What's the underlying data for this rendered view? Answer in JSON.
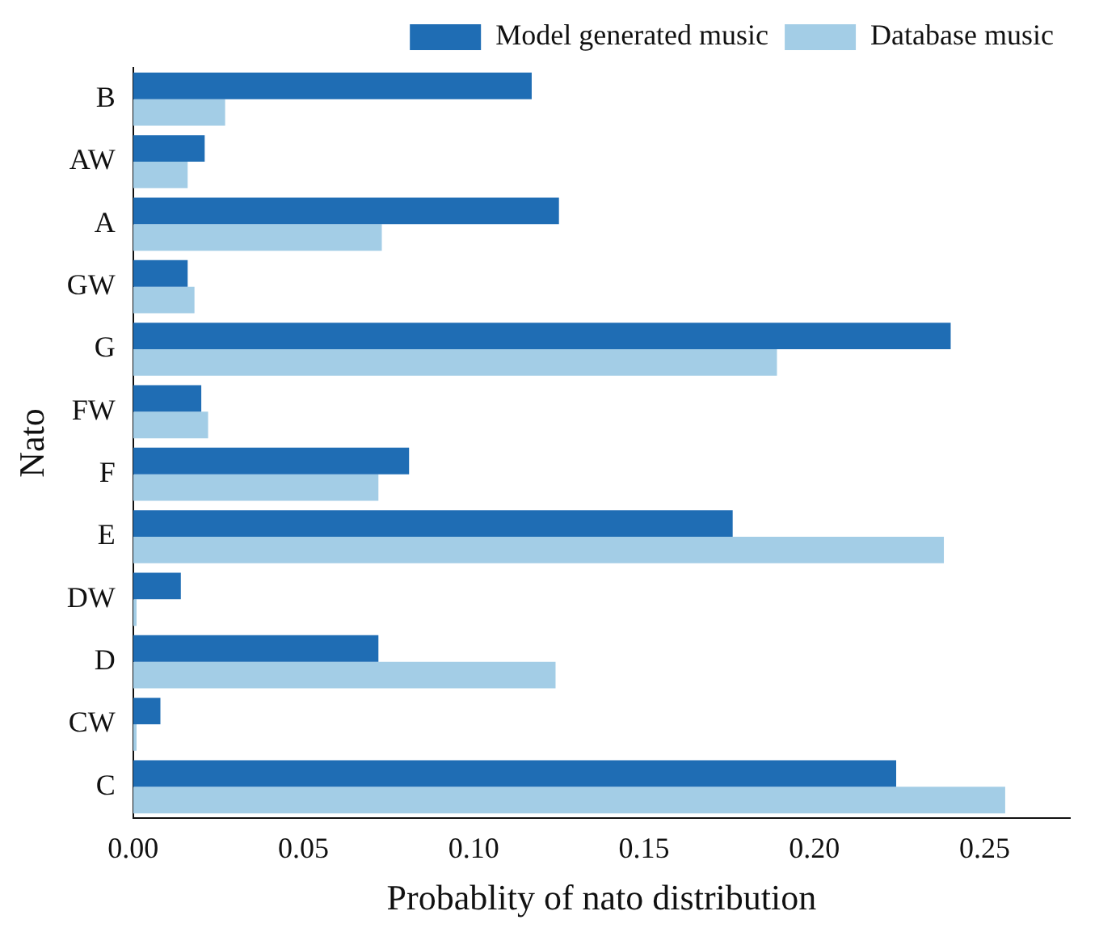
{
  "chart_data": {
    "type": "bar",
    "orientation": "horizontal",
    "xlabel": "Probablity of nato distribution",
    "ylabel": "Nato",
    "categories": [
      "B",
      "AW",
      "A",
      "GW",
      "G",
      "FW",
      "F",
      "E",
      "DW",
      "D",
      "CW",
      "C"
    ],
    "series": [
      {
        "name": "Model generated music",
        "color": "#1f6db4",
        "values": [
          0.117,
          0.021,
          0.125,
          0.016,
          0.24,
          0.02,
          0.081,
          0.176,
          0.014,
          0.072,
          0.008,
          0.224
        ]
      },
      {
        "name": "Database music",
        "color": "#a3cde6",
        "values": [
          0.027,
          0.016,
          0.073,
          0.018,
          0.189,
          0.022,
          0.072,
          0.238,
          0.001,
          0.124,
          0.001,
          0.256
        ]
      }
    ],
    "xlim": [
      0,
      0.275
    ],
    "xticks": [
      {
        "value": 0,
        "label": "0.00"
      },
      {
        "value": 0.05,
        "label": "0.05"
      },
      {
        "value": 0.1,
        "label": "0.10"
      },
      {
        "value": 0.15,
        "label": "0.15"
      },
      {
        "value": 0.2,
        "label": "0.20"
      },
      {
        "value": 0.25,
        "label": "0.25"
      }
    ],
    "grid": false,
    "legend": "top right"
  }
}
